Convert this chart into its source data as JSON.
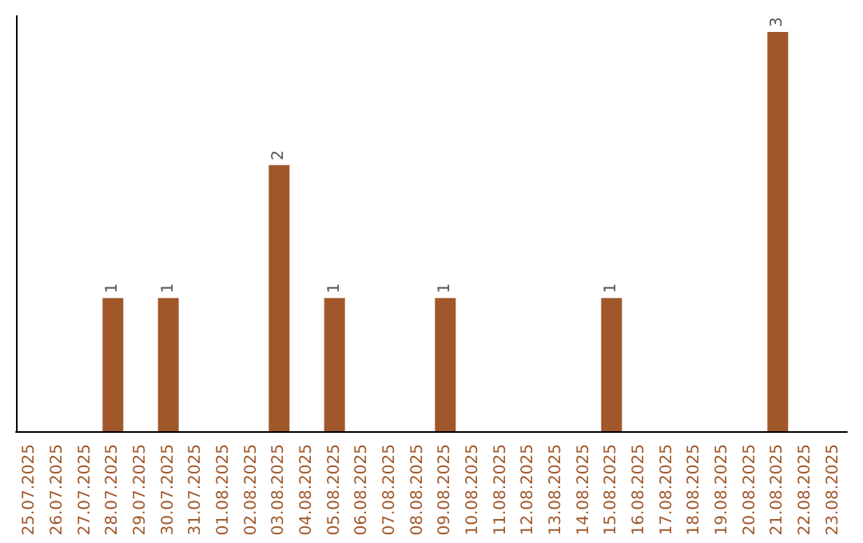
{
  "chart_data": {
    "type": "bar",
    "categories": [
      "25.07.2025",
      "26.07.2025",
      "27.07.2025",
      "28.07.2025",
      "29.07.2025",
      "30.07.2025",
      "31.07.2025",
      "01.08.2025",
      "02.08.2025",
      "03.08.2025",
      "04.08.2025",
      "05.08.2025",
      "06.08.2025",
      "07.08.2025",
      "08.08.2025",
      "09.08.2025",
      "10.08.2025",
      "11.08.2025",
      "12.08.2025",
      "13.08.2025",
      "14.08.2025",
      "15.08.2025",
      "16.08.2025",
      "17.08.2025",
      "18.08.2025",
      "19.08.2025",
      "20.08.2025",
      "21.08.2025",
      "22.08.2025",
      "23.08.2025"
    ],
    "values": [
      0,
      0,
      0,
      1,
      0,
      1,
      0,
      0,
      0,
      2,
      0,
      1,
      0,
      0,
      0,
      1,
      0,
      0,
      0,
      0,
      0,
      1,
      0,
      0,
      0,
      0,
      0,
      3,
      0,
      0
    ],
    "value_labels": [
      null,
      null,
      null,
      "1",
      null,
      "1",
      null,
      null,
      null,
      "2",
      null,
      "1",
      null,
      null,
      null,
      "1",
      null,
      null,
      null,
      null,
      null,
      "1",
      null,
      null,
      null,
      null,
      null,
      "3",
      null,
      null
    ],
    "color": "#a0582a",
    "tick_labels": "x"
  }
}
